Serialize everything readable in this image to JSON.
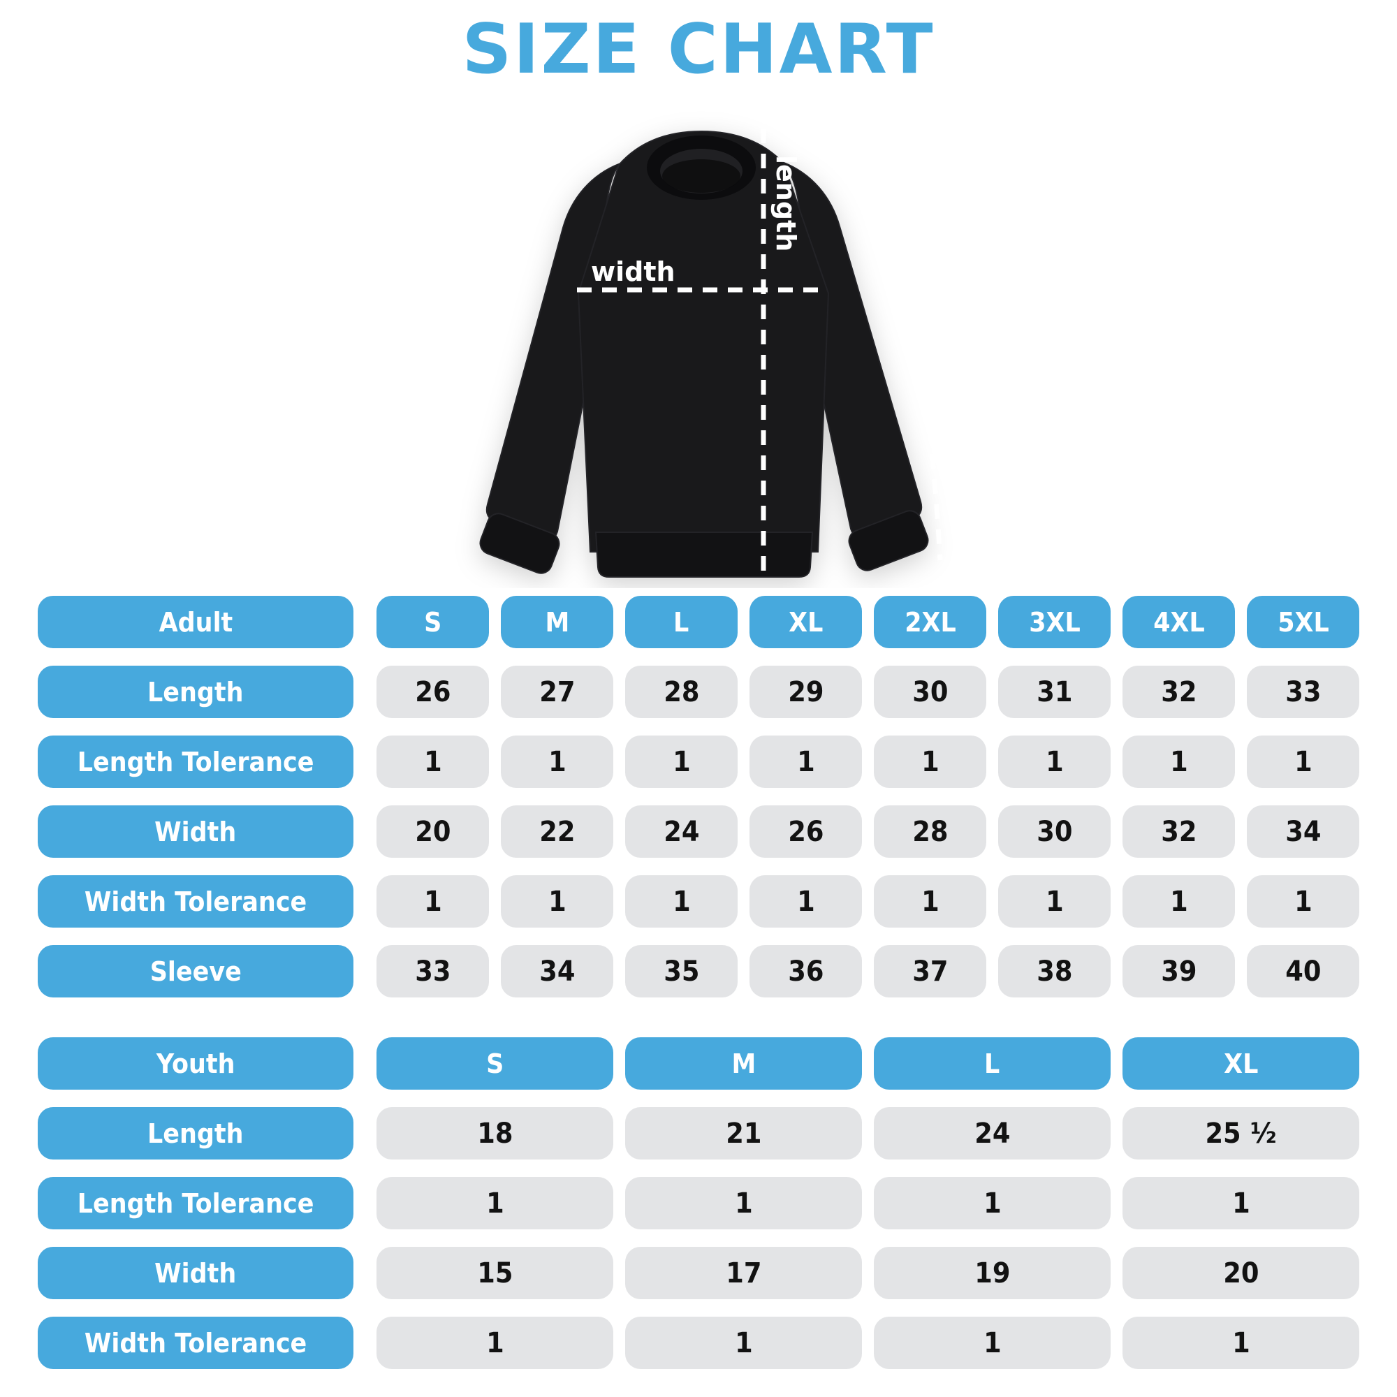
{
  "title": "SIZE CHART",
  "colors": {
    "accent": "#47A9DD",
    "cell_bg": "#E3E4E6",
    "header_text": "#FFFFFF",
    "value_text": "#121212",
    "garment": "#19191B",
    "garment_dark": "#121214",
    "collar": "#0C0C0E",
    "collar_inner": "#202023",
    "line": "#FFFFFF"
  },
  "diagram": {
    "length_label": "length",
    "width_label": "width",
    "sleeve_label": "sleeve"
  },
  "adult_table": {
    "header_label": "Adult",
    "sizes": [
      "S",
      "M",
      "L",
      "XL",
      "2XL",
      "3XL",
      "4XL",
      "5XL"
    ],
    "rows": [
      {
        "label": "Length",
        "values": [
          "26",
          "27",
          "28",
          "29",
          "30",
          "31",
          "32",
          "33"
        ]
      },
      {
        "label": "Length Tolerance",
        "values": [
          "1",
          "1",
          "1",
          "1",
          "1",
          "1",
          "1",
          "1"
        ]
      },
      {
        "label": "Width",
        "values": [
          "20",
          "22",
          "24",
          "26",
          "28",
          "30",
          "32",
          "34"
        ]
      },
      {
        "label": "Width Tolerance",
        "values": [
          "1",
          "1",
          "1",
          "1",
          "1",
          "1",
          "1",
          "1"
        ]
      },
      {
        "label": "Sleeve",
        "values": [
          "33",
          "34",
          "35",
          "36",
          "37",
          "38",
          "39",
          "40"
        ]
      }
    ]
  },
  "youth_table": {
    "header_label": "Youth",
    "sizes": [
      "S",
      "M",
      "L",
      "XL"
    ],
    "rows": [
      {
        "label": "Length",
        "values": [
          "18",
          "21",
          "24",
          "25 ¹⁄₂"
        ]
      },
      {
        "label": "Length Tolerance",
        "values": [
          "1",
          "1",
          "1",
          "1"
        ]
      },
      {
        "label": "Width",
        "values": [
          "15",
          "17",
          "19",
          "20"
        ]
      },
      {
        "label": "Width Tolerance",
        "values": [
          "1",
          "1",
          "1",
          "1"
        ]
      }
    ]
  },
  "chart_data": [
    {
      "type": "table",
      "title": "Adult",
      "columns": [
        "Adult",
        "S",
        "M",
        "L",
        "XL",
        "2XL",
        "3XL",
        "4XL",
        "5XL"
      ],
      "rows": [
        [
          "Length",
          26,
          27,
          28,
          29,
          30,
          31,
          32,
          33
        ],
        [
          "Length Tolerance",
          1,
          1,
          1,
          1,
          1,
          1,
          1,
          1
        ],
        [
          "Width",
          20,
          22,
          24,
          26,
          28,
          30,
          32,
          34
        ],
        [
          "Width Tolerance",
          1,
          1,
          1,
          1,
          1,
          1,
          1,
          1
        ],
        [
          "Sleeve",
          33,
          34,
          35,
          36,
          37,
          38,
          39,
          40
        ]
      ]
    },
    {
      "type": "table",
      "title": "Youth",
      "columns": [
        "Youth",
        "S",
        "M",
        "L",
        "XL"
      ],
      "rows": [
        [
          "Length",
          18,
          21,
          24,
          25.5
        ],
        [
          "Length Tolerance",
          1,
          1,
          1,
          1
        ],
        [
          "Width",
          15,
          17,
          19,
          20
        ],
        [
          "Width Tolerance",
          1,
          1,
          1,
          1
        ]
      ]
    }
  ]
}
